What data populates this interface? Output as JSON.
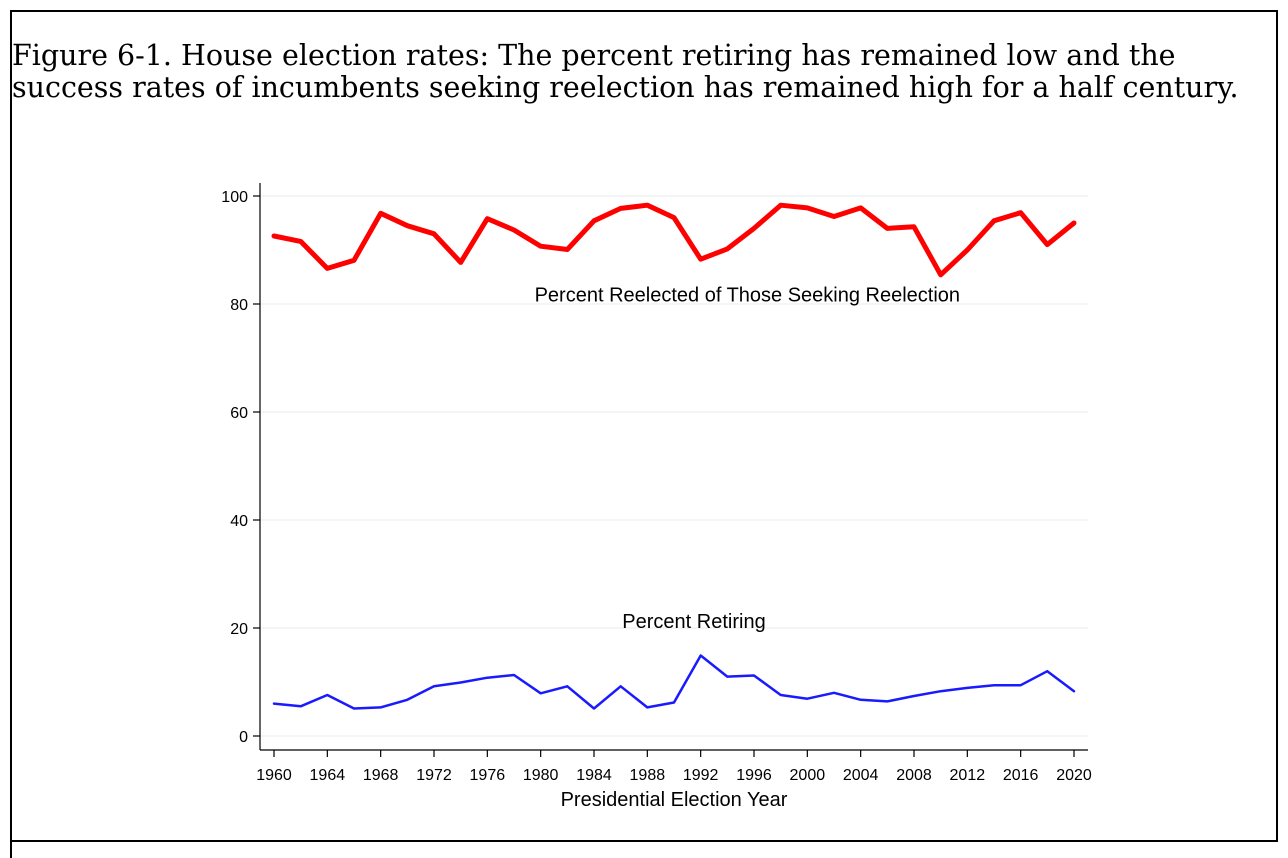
{
  "caption": "Figure 6-1. House election rates: The percent retiring has remained low and the success rates of incumbents seeking reelection has remained high for a half century.",
  "chart_data": {
    "type": "line",
    "title": "",
    "xlabel": "Presidential Election Year",
    "ylabel": "",
    "xlim": [
      1960,
      2020
    ],
    "ylim": [
      0,
      100
    ],
    "grid": true,
    "x_ticks": [
      1960,
      1964,
      1968,
      1972,
      1976,
      1980,
      1984,
      1988,
      1992,
      1996,
      2000,
      2004,
      2008,
      2012,
      2016,
      2020
    ],
    "y_ticks": [
      0,
      20,
      40,
      60,
      80,
      100
    ],
    "x": [
      1960,
      1962,
      1964,
      1966,
      1968,
      1970,
      1972,
      1974,
      1976,
      1978,
      1980,
      1982,
      1984,
      1986,
      1988,
      1990,
      1992,
      1994,
      1996,
      1998,
      2000,
      2002,
      2004,
      2006,
      2008,
      2010,
      2012,
      2014,
      2016,
      2018,
      2020
    ],
    "series": [
      {
        "name": "Percent Reelected of Those Seeking Reelection",
        "color": "#ff0000",
        "values": [
          92.6,
          91.6,
          86.6,
          88.1,
          96.8,
          94.5,
          93.0,
          87.7,
          95.8,
          93.7,
          90.7,
          90.1,
          95.4,
          97.7,
          98.3,
          96.0,
          88.3,
          90.2,
          94.0,
          98.3,
          97.8,
          96.2,
          97.8,
          94.0,
          94.3,
          85.4,
          90.0,
          95.4,
          96.9,
          91.0,
          95.0
        ]
      },
      {
        "name": "Percent Retiring",
        "color": "#1a1aff",
        "values": [
          6.0,
          5.5,
          7.6,
          5.1,
          5.3,
          6.7,
          9.2,
          9.9,
          10.8,
          11.3,
          7.9,
          9.2,
          5.1,
          9.2,
          5.3,
          6.2,
          14.9,
          11.0,
          11.2,
          7.6,
          6.9,
          8.0,
          6.7,
          6.4,
          7.4,
          8.3,
          8.9,
          9.4,
          9.4,
          12.0,
          8.3
        ]
      }
    ],
    "annotations": [
      {
        "text": "Percent Reelected of Those Seeking Reelection",
        "x": 1995.5,
        "y": 80.5
      },
      {
        "text": "Percent Retiring",
        "x": 1991.5,
        "y": 20.0
      }
    ]
  }
}
